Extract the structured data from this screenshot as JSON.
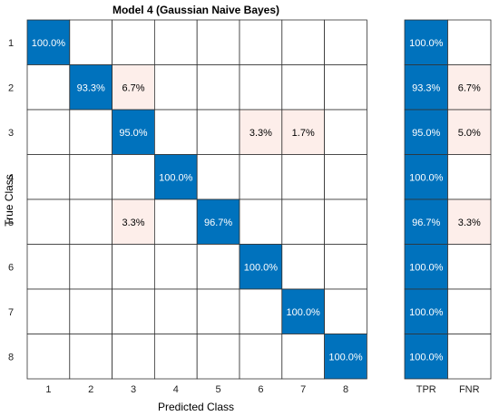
{
  "chart_data": {
    "type": "heatmap",
    "title": "Model 4 (Gaussian Naive Bayes)",
    "xlabel": "Predicted Class",
    "ylabel": "True Class",
    "classes": [
      "1",
      "2",
      "3",
      "4",
      "5",
      "6",
      "7",
      "8"
    ],
    "matrix_percent": [
      [
        100.0,
        null,
        null,
        null,
        null,
        null,
        null,
        null
      ],
      [
        null,
        93.3,
        6.7,
        null,
        null,
        null,
        null,
        null
      ],
      [
        null,
        null,
        95.0,
        null,
        null,
        3.3,
        1.7,
        null
      ],
      [
        null,
        null,
        null,
        100.0,
        null,
        null,
        null,
        null
      ],
      [
        null,
        null,
        3.3,
        null,
        96.7,
        null,
        null,
        null
      ],
      [
        null,
        null,
        null,
        null,
        null,
        100.0,
        null,
        null
      ],
      [
        null,
        null,
        null,
        null,
        null,
        null,
        100.0,
        null
      ],
      [
        null,
        null,
        null,
        null,
        null,
        null,
        null,
        100.0
      ]
    ],
    "summary_columns": [
      "TPR",
      "FNR"
    ],
    "tpr": [
      100.0,
      93.3,
      95.0,
      100.0,
      96.7,
      100.0,
      100.0,
      100.0
    ],
    "fnr": [
      null,
      6.7,
      5.0,
      null,
      3.3,
      null,
      null,
      null
    ],
    "value_format": "percent_1dp",
    "colors": {
      "diagonal": "#0072bd",
      "off_diagonal": "#fdeeea",
      "diagonal_text": "#ffffff",
      "off_diagonal_text": "#000000",
      "grid": "#333333",
      "background": "#ffffff"
    }
  }
}
